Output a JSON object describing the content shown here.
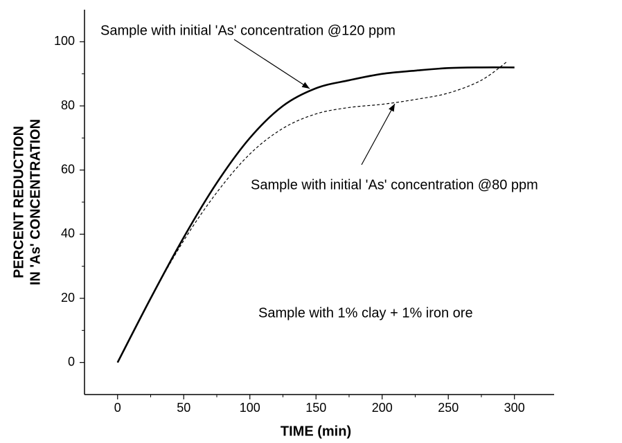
{
  "chart_data": {
    "type": "line",
    "x_label": "TIME (min)",
    "y_label": [
      "PERCENT REDUCTION",
      "IN 'As' CONCENTRATION"
    ],
    "annotations": [
      "Sample with initial 'As' concentration @120 ppm",
      "Sample with initial 'As' concentration @80 ppm",
      "Sample with 1% clay + 1% iron ore"
    ],
    "xlim": [
      -25,
      330
    ],
    "xticks": [
      0,
      50,
      100,
      150,
      200,
      250,
      300
    ],
    "ylim": [
      -10,
      110
    ],
    "yticks": [
      0,
      20,
      40,
      60,
      80,
      100
    ],
    "series": [
      {
        "name": "120 ppm",
        "color": "#000000",
        "dashed": false,
        "x": [
          0,
          25,
          50,
          75,
          100,
          125,
          150,
          175,
          200,
          225,
          250,
          275,
          300
        ],
        "values": [
          0,
          20,
          39,
          56,
          70,
          80,
          85.5,
          88,
          90,
          91,
          91.8,
          92,
          92
        ]
      },
      {
        "name": "80 ppm",
        "color": "#000000",
        "dashed": true,
        "x": [
          0,
          25,
          50,
          75,
          100,
          125,
          150,
          175,
          200,
          225,
          250,
          275,
          295
        ],
        "values": [
          0,
          20,
          38,
          53,
          65,
          73,
          77.5,
          79.5,
          80.5,
          82,
          84,
          88,
          94
        ]
      }
    ]
  }
}
